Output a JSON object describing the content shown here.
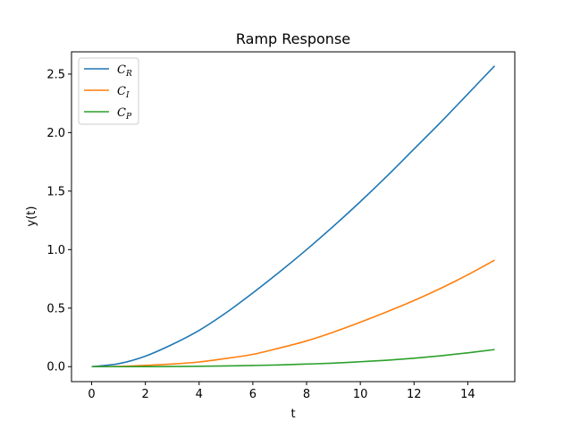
{
  "chart_data": {
    "type": "line",
    "title": "Ramp Response",
    "xlabel": "t",
    "ylabel": "y(t)",
    "xlim": [
      -0.75,
      15.75
    ],
    "ylim": [
      -0.128,
      2.69
    ],
    "xticks": [
      0,
      2,
      4,
      6,
      8,
      10,
      12,
      14
    ],
    "yticks": [
      0.0,
      0.5,
      1.0,
      1.5,
      2.0,
      2.5
    ],
    "ytick_labels": [
      "0.0",
      "0.5",
      "1.0",
      "1.5",
      "2.0",
      "2.5"
    ],
    "grid": false,
    "legend_position": "top-left",
    "series": [
      {
        "name": "C_R",
        "label_main": "C",
        "label_sub": "R",
        "color": "#1f77b4",
        "x": [
          0,
          1,
          2,
          3,
          4,
          5,
          6,
          7,
          8,
          9,
          10,
          11,
          12,
          13,
          14,
          15
        ],
        "y": [
          0.0,
          0.025,
          0.09,
          0.19,
          0.31,
          0.46,
          0.63,
          0.81,
          1.0,
          1.2,
          1.41,
          1.63,
          1.86,
          2.09,
          2.33,
          2.57
        ]
      },
      {
        "name": "C_I",
        "label_main": "C",
        "label_sub": "I",
        "color": "#ff7f0e",
        "x": [
          0,
          1,
          2,
          3,
          4,
          5,
          6,
          7,
          8,
          9,
          10,
          11,
          12,
          13,
          14,
          15
        ],
        "y": [
          0.0,
          0.002,
          0.011,
          0.022,
          0.04,
          0.07,
          0.105,
          0.16,
          0.22,
          0.295,
          0.38,
          0.47,
          0.565,
          0.67,
          0.785,
          0.91
        ]
      },
      {
        "name": "C_P",
        "label_main": "C",
        "label_sub": "P",
        "color": "#2ca02c",
        "x": [
          0,
          1,
          2,
          3,
          4,
          5,
          6,
          7,
          8,
          9,
          10,
          11,
          12,
          13,
          14,
          15
        ],
        "y": [
          0.0,
          0.0,
          0.0005,
          0.001,
          0.003,
          0.006,
          0.01,
          0.015,
          0.022,
          0.03,
          0.042,
          0.055,
          0.072,
          0.093,
          0.118,
          0.146
        ]
      }
    ]
  }
}
